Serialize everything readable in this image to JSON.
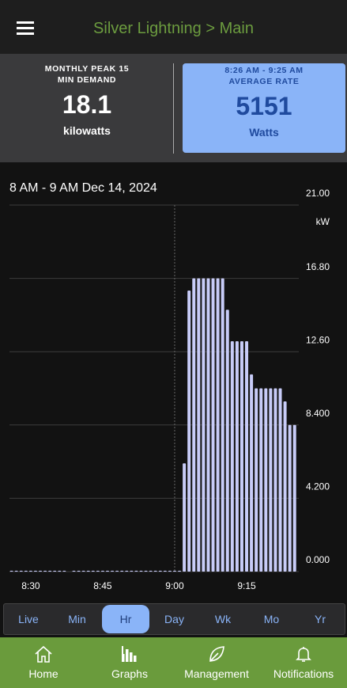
{
  "header": {
    "title": "Silver Lightning > Main"
  },
  "cards": [
    {
      "title_lines": [
        "MONTHLY PEAK 15",
        "MIN DEMAND"
      ],
      "value": "18.1",
      "unit": "kilowatts"
    },
    {
      "title_lines": [
        "8:26 AM - 9:25 AM",
        "AVERAGE RATE"
      ],
      "value": "5151",
      "unit": "Watts"
    }
  ],
  "chart_data": {
    "type": "bar",
    "title": "8 AM - 9 AM Dec 14, 2024",
    "y_unit": "kW",
    "categories": [
      null,
      null,
      null,
      null,
      "8:30",
      null,
      null,
      null,
      null,
      null,
      null,
      null,
      null,
      null,
      null,
      null,
      null,
      null,
      null,
      "8:45",
      null,
      null,
      null,
      null,
      null,
      null,
      null,
      null,
      null,
      null,
      null,
      null,
      null,
      null,
      "9:00",
      null,
      null,
      null,
      null,
      null,
      null,
      null,
      null,
      null,
      null,
      null,
      null,
      null,
      null,
      "9:15",
      null,
      null,
      null,
      null,
      null,
      null,
      null,
      null,
      null,
      null
    ],
    "values": [
      0.05,
      0.05,
      0.05,
      0.05,
      0.05,
      0.05,
      0.05,
      0.05,
      0.05,
      0.05,
      0.05,
      0.05,
      null,
      0.05,
      0.05,
      0.05,
      0.05,
      0.05,
      0.05,
      0.05,
      0.05,
      0.05,
      0.05,
      0.05,
      0.05,
      0.05,
      0.05,
      0.05,
      0.05,
      0.05,
      0.05,
      0.05,
      0.05,
      0.05,
      0.05,
      0.05,
      6.2,
      16.1,
      16.8,
      16.8,
      16.8,
      16.8,
      16.8,
      16.8,
      16.8,
      15.0,
      13.2,
      13.2,
      13.2,
      13.2,
      11.3,
      10.5,
      10.5,
      10.5,
      10.5,
      10.5,
      10.5,
      9.75,
      8.4,
      8.4
    ],
    "color": "#c8ccf8",
    "ylim": [
      0,
      21
    ],
    "yticks": [
      {
        "value": 0,
        "label": "0.000"
      },
      {
        "value": 4.2,
        "label": "4.200"
      },
      {
        "value": 8.4,
        "label": "8.400"
      },
      {
        "value": 12.6,
        "label": "12.60"
      },
      {
        "value": 16.8,
        "label": "16.80"
      },
      {
        "value": 21,
        "label": "21.00"
      }
    ],
    "grid": true
  },
  "ranges": [
    "Live",
    "Min",
    "Hr",
    "Day",
    "Wk",
    "Mo",
    "Yr"
  ],
  "selected_range": "Hr",
  "nav": [
    "Home",
    "Graphs",
    "Management",
    "Notifications"
  ]
}
